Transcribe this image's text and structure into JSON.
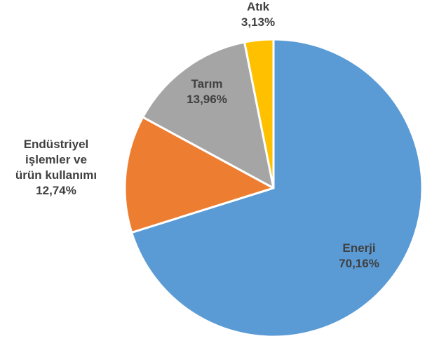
{
  "chart_data": {
    "type": "pie",
    "title": "",
    "start_angle_deg": 0,
    "direction": "clockwise",
    "slices": [
      {
        "name": "Enerji",
        "value": 70.16,
        "value_label": "70,16%",
        "label_lines": [
          "Enerji",
          "70,16%"
        ],
        "color": "#5B9BD5",
        "label_color": "#404040",
        "label_placement": "inside"
      },
      {
        "name": "Endüstriyel işlemler ve ürün kullanımı",
        "value": 12.74,
        "value_label": "12,74%",
        "label_lines": [
          "Endüstriyel",
          "işlemler ve",
          "ürün kullanımı",
          "12,74%"
        ],
        "color": "#ED7D31",
        "label_color": "#404040",
        "label_placement": "outside-left"
      },
      {
        "name": "Tarım",
        "value": 13.96,
        "value_label": "13,96%",
        "label_lines": [
          "Tarım",
          "13,96%"
        ],
        "color": "#A5A5A5",
        "label_color": "#404040",
        "label_placement": "inside"
      },
      {
        "name": "Atık",
        "value": 3.13,
        "value_label": "3,13%",
        "label_lines": [
          "Atık",
          "3,13%"
        ],
        "color": "#FFC000",
        "label_color": "#404040",
        "label_placement": "outside-top"
      }
    ]
  }
}
